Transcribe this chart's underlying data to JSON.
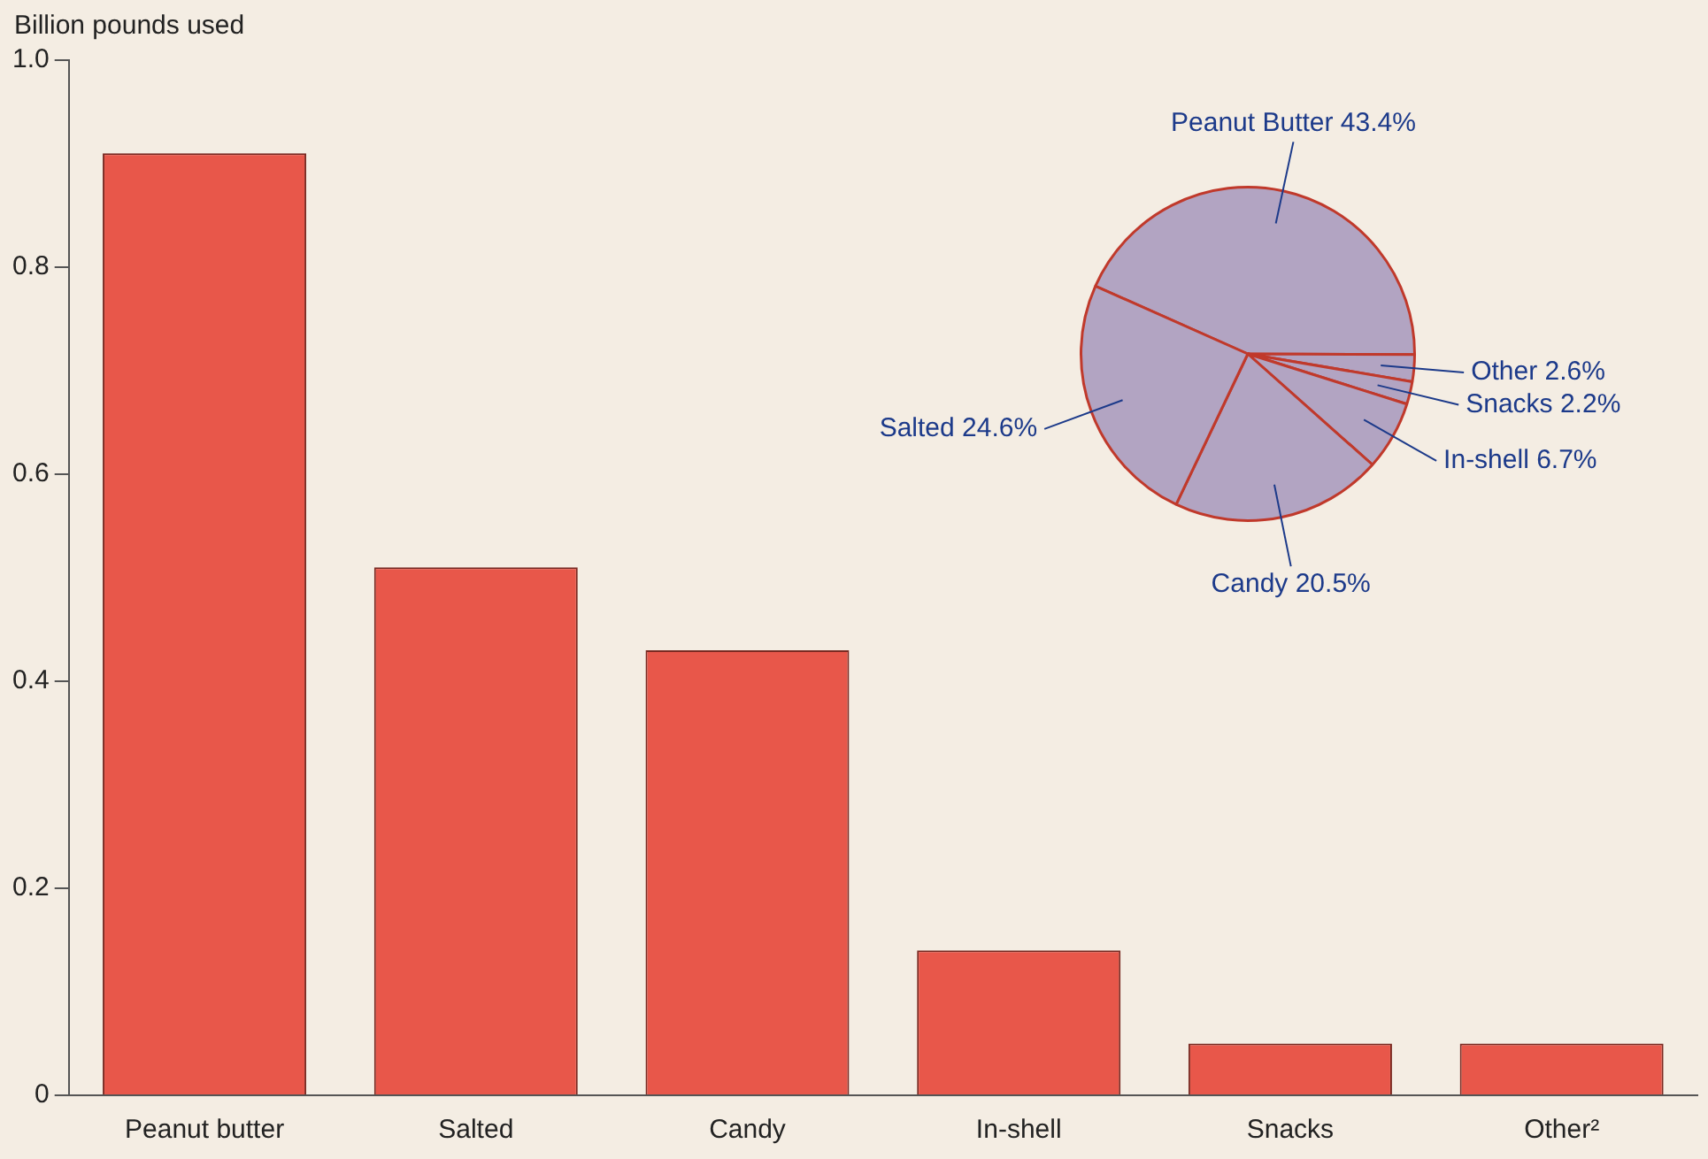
{
  "chart_data": [
    {
      "type": "bar",
      "ylabel": "Billion pounds used",
      "categories": [
        "Peanut butter",
        "Salted",
        "Candy",
        "In-shell",
        "Snacks",
        "Other²"
      ],
      "values": [
        0.91,
        0.51,
        0.43,
        0.14,
        0.05,
        0.05
      ],
      "color": "#e8574a",
      "ylim": [
        0,
        1
      ],
      "yticks": [
        0,
        0.2,
        0.4,
        0.6,
        0.8,
        {
          "value": 1,
          "label": "1.0"
        }
      ],
      "legend": false
    },
    {
      "type": "pie",
      "categories": [
        "Peanut Butter",
        "Other",
        "Snacks",
        "In-shell",
        "Candy",
        "Salted"
      ],
      "values": [
        43.4,
        2.6,
        2.2,
        6.7,
        20.5,
        24.6
      ],
      "value_labels": [
        "43.4%",
        "2.6%",
        "2.2%",
        "6.7%",
        "20.5%",
        "24.6%"
      ],
      "colors": [
        "#b2a4c2",
        "#b2a4c2",
        "#b2a4c2",
        "#b2a4c2",
        "#b2a4c2",
        "#b2a4c2"
      ],
      "legend": false
    }
  ]
}
